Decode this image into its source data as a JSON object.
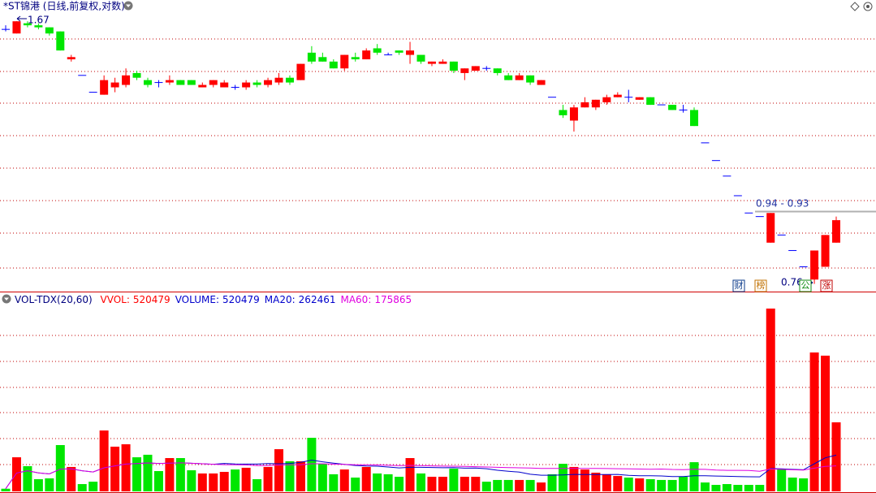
{
  "chart_data": [
    {
      "type": "candlestick",
      "title": "*ST锦港 (日线,前复权,对数)",
      "log_scale": true,
      "ylim": [
        0.75,
        1.78
      ],
      "up_color": "#ff0000",
      "down_color": "#00e600",
      "flat_color": "#0000ff",
      "open": [
        1.63,
        1.61,
        1.66,
        1.65,
        1.64,
        1.62,
        1.49,
        1.42,
        1.35,
        1.34,
        1.37,
        1.38,
        1.43,
        1.4,
        1.39,
        1.39,
        1.4,
        1.4,
        1.37,
        1.38,
        1.37,
        1.37,
        1.37,
        1.39,
        1.38,
        1.39,
        1.41,
        1.4,
        1.52,
        1.5,
        1.48,
        1.45,
        1.5,
        1.49,
        1.54,
        1.51,
        1.53,
        1.51,
        1.51,
        1.47,
        1.47,
        1.48,
        1.43,
        1.44,
        1.45,
        1.45,
        1.42,
        1.4,
        1.42,
        1.38,
        1.33,
        1.28,
        1.24,
        1.29,
        1.29,
        1.31,
        1.33,
        1.33,
        1.32,
        1.33,
        1.3,
        1.3,
        1.28,
        1.28,
        1.16,
        1.1,
        1.05,
        0.99,
        0.94,
        0.93,
        0.86,
        0.88,
        0.84,
        0.8,
        0.77,
        0.8,
        0.86
      ],
      "high": [
        1.65,
        1.67,
        1.67,
        1.66,
        1.64,
        1.62,
        1.51,
        1.42,
        1.35,
        1.42,
        1.41,
        1.45,
        1.44,
        1.41,
        1.4,
        1.42,
        1.4,
        1.4,
        1.39,
        1.4,
        1.4,
        1.38,
        1.4,
        1.4,
        1.41,
        1.43,
        1.42,
        1.47,
        1.55,
        1.52,
        1.49,
        1.51,
        1.52,
        1.54,
        1.56,
        1.52,
        1.53,
        1.57,
        1.51,
        1.48,
        1.49,
        1.48,
        1.45,
        1.46,
        1.46,
        1.45,
        1.43,
        1.43,
        1.42,
        1.4,
        1.33,
        1.3,
        1.3,
        1.33,
        1.32,
        1.34,
        1.35,
        1.36,
        1.33,
        1.33,
        1.3,
        1.3,
        1.3,
        1.29,
        1.16,
        1.1,
        1.05,
        0.99,
        0.94,
        0.93,
        0.94,
        0.88,
        0.84,
        0.8,
        0.84,
        0.88,
        0.93
      ],
      "low": [
        1.62,
        1.61,
        1.64,
        1.63,
        1.6,
        1.53,
        1.48,
        1.42,
        1.35,
        1.34,
        1.35,
        1.37,
        1.4,
        1.37,
        1.37,
        1.38,
        1.38,
        1.38,
        1.37,
        1.37,
        1.37,
        1.36,
        1.36,
        1.37,
        1.37,
        1.38,
        1.38,
        1.4,
        1.47,
        1.48,
        1.45,
        1.44,
        1.48,
        1.49,
        1.51,
        1.51,
        1.51,
        1.47,
        1.47,
        1.46,
        1.47,
        1.43,
        1.4,
        1.44,
        1.44,
        1.42,
        1.4,
        1.4,
        1.38,
        1.38,
        1.33,
        1.25,
        1.2,
        1.29,
        1.28,
        1.3,
        1.33,
        1.31,
        1.32,
        1.3,
        1.3,
        1.28,
        1.27,
        1.22,
        1.16,
        1.1,
        1.05,
        0.99,
        0.94,
        0.93,
        0.86,
        0.88,
        0.84,
        0.8,
        0.76,
        0.8,
        0.86
      ],
      "close": [
        1.63,
        1.67,
        1.65,
        1.64,
        1.61,
        1.53,
        1.5,
        1.42,
        1.35,
        1.4,
        1.39,
        1.42,
        1.41,
        1.38,
        1.39,
        1.4,
        1.38,
        1.38,
        1.38,
        1.4,
        1.39,
        1.37,
        1.39,
        1.38,
        1.4,
        1.41,
        1.39,
        1.47,
        1.48,
        1.48,
        1.45,
        1.51,
        1.49,
        1.53,
        1.52,
        1.51,
        1.52,
        1.53,
        1.48,
        1.48,
        1.48,
        1.44,
        1.45,
        1.46,
        1.45,
        1.43,
        1.4,
        1.42,
        1.39,
        1.4,
        1.33,
        1.26,
        1.29,
        1.31,
        1.32,
        1.33,
        1.34,
        1.33,
        1.33,
        1.3,
        1.3,
        1.28,
        1.28,
        1.22,
        1.16,
        1.1,
        1.05,
        0.99,
        0.94,
        0.93,
        0.94,
        0.88,
        0.84,
        0.8,
        0.84,
        0.88,
        0.92
      ],
      "max_label": 1.67,
      "min_label": 0.76,
      "price_line_label": "0.94 - 0.93",
      "markers": [
        "财",
        "榜",
        "公",
        "涨"
      ]
    },
    {
      "type": "volume",
      "title": "VOL-TDX(20,60)",
      "ylim": [
        0,
        1408000
      ],
      "stats": [
        {
          "label": "VVOL:",
          "value": 520479,
          "color": "#ff0000"
        },
        {
          "label": "VOLUME:",
          "value": 520479,
          "color": "#0000cc"
        },
        {
          "label": "MA20:",
          "value": 262461,
          "color": "#0000cc"
        },
        {
          "label": "MA60:",
          "value": 175865,
          "color": "#e000e0"
        }
      ],
      "ma_colors": [
        "#0000cc",
        "#e000e0"
      ],
      "values": [
        20000,
        257000,
        190000,
        92000,
        98000,
        349000,
        184000,
        55000,
        73000,
        459000,
        337000,
        355000,
        257000,
        276000,
        153000,
        251000,
        251000,
        159000,
        135000,
        135000,
        147000,
        165000,
        178000,
        92000,
        184000,
        318000,
        227000,
        227000,
        404000,
        208000,
        129000,
        165000,
        104000,
        184000,
        135000,
        129000,
        110000,
        251000,
        135000,
        110000,
        110000,
        171000,
        110000,
        110000,
        73000,
        86000,
        86000,
        86000,
        86000,
        67000,
        129000,
        208000,
        184000,
        165000,
        141000,
        129000,
        116000,
        104000,
        98000,
        92000,
        86000,
        86000,
        110000,
        220000,
        67000,
        49000,
        55000,
        49000,
        49000,
        49000,
        1378000,
        171000,
        104000,
        98000,
        1047000,
        1023000,
        520479
      ]
    }
  ]
}
